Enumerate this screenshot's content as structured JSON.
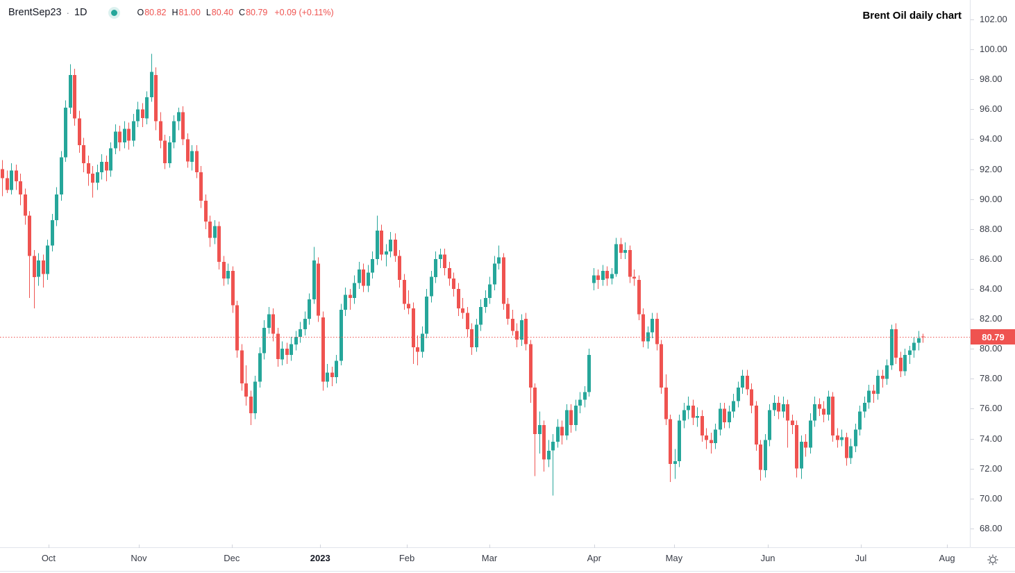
{
  "header": {
    "symbol": "BrentSep23",
    "separator": "·",
    "interval": "1D",
    "ohlc": [
      {
        "label": "O",
        "value": "80.82"
      },
      {
        "label": "H",
        "value": "81.00"
      },
      {
        "label": "L",
        "value": "80.40"
      },
      {
        "label": "C",
        "value": "80.79"
      }
    ],
    "change": "+0.09 (+0.11%)"
  },
  "annotation": {
    "title": "Brent Oil daily chart"
  },
  "price_badge": {
    "value": "80.79"
  },
  "icons": {
    "status_dot": "teal-dot",
    "settings": "sun-gear-icon"
  },
  "colors": {
    "up": "#26a69a",
    "down": "#ef5350",
    "accent_red": "#ef5350",
    "badge_bg": "#ef5350",
    "text": "#131722",
    "axis_text": "#363a45",
    "grid": "#e0e3eb"
  },
  "chart_data": {
    "type": "candlestick",
    "title": "Brent Oil daily chart",
    "symbol": "BrentSep23",
    "interval": "1D",
    "last_price": 80.79,
    "price_line": 80.79,
    "ylim": [
      66.74,
      103.3
    ],
    "y_ticks": [
      102,
      100,
      98,
      96,
      94,
      92,
      90,
      88,
      86,
      84,
      82,
      80,
      78,
      76,
      74,
      72,
      70,
      68
    ],
    "x_ticks": [
      {
        "label": "Oct",
        "index": 10.3,
        "bold": false
      },
      {
        "label": "Nov",
        "index": 30.3,
        "bold": false
      },
      {
        "label": "Dec",
        "index": 50.9,
        "bold": false
      },
      {
        "label": "2023",
        "index": 70.5,
        "bold": true
      },
      {
        "label": "Feb",
        "index": 89.7,
        "bold": false
      },
      {
        "label": "Mar",
        "index": 108.0,
        "bold": false
      },
      {
        "label": "Apr",
        "index": 131.2,
        "bold": false
      },
      {
        "label": "May",
        "index": 148.9,
        "bold": false
      },
      {
        "label": "Jun",
        "index": 169.7,
        "bold": false
      },
      {
        "label": "Jul",
        "index": 190.3,
        "bold": false
      },
      {
        "label": "Aug",
        "index": 209.4,
        "bold": false
      }
    ],
    "layout": {
      "x0": 3,
      "pitch": 6.5,
      "body_width": 5,
      "grid": false,
      "price_line_style": "dotted"
    },
    "candles": [
      [
        92.0,
        92.6,
        90.2,
        91.4
      ],
      [
        91.4,
        91.9,
        90.4,
        90.6
      ],
      [
        90.6,
        92.4,
        90.3,
        91.9
      ],
      [
        91.9,
        92.3,
        90.6,
        91.2
      ],
      [
        91.2,
        91.7,
        89.6,
        90.3
      ],
      [
        90.3,
        90.7,
        88.3,
        88.9
      ],
      [
        88.9,
        89.2,
        83.4,
        86.2
      ],
      [
        86.2,
        86.6,
        82.7,
        84.8
      ],
      [
        84.8,
        86.4,
        84.2,
        85.9
      ],
      [
        85.9,
        86.3,
        84.1,
        85.0
      ],
      [
        85.0,
        87.3,
        84.6,
        86.9
      ],
      [
        86.9,
        89.0,
        86.5,
        88.6
      ],
      [
        88.6,
        90.8,
        88.2,
        90.3
      ],
      [
        90.3,
        93.2,
        89.9,
        92.8
      ],
      [
        92.8,
        96.6,
        92.5,
        96.1
      ],
      [
        96.1,
        99.0,
        95.7,
        98.3
      ],
      [
        98.3,
        98.7,
        94.9,
        95.4
      ],
      [
        95.4,
        95.9,
        93.1,
        93.6
      ],
      [
        93.6,
        94.1,
        91.8,
        92.4
      ],
      [
        92.4,
        92.9,
        90.9,
        91.7
      ],
      [
        91.7,
        92.2,
        90.1,
        91.1
      ],
      [
        91.1,
        92.3,
        90.6,
        91.8
      ],
      [
        91.8,
        93.0,
        91.3,
        92.5
      ],
      [
        92.5,
        92.9,
        91.2,
        91.9
      ],
      [
        91.9,
        93.8,
        91.5,
        93.4
      ],
      [
        93.4,
        95.0,
        93.0,
        94.5
      ],
      [
        94.5,
        94.9,
        93.2,
        93.8
      ],
      [
        93.8,
        95.2,
        93.4,
        94.7
      ],
      [
        94.7,
        95.1,
        93.3,
        93.9
      ],
      [
        93.9,
        95.7,
        93.5,
        95.2
      ],
      [
        95.2,
        96.5,
        94.8,
        96.0
      ],
      [
        96.0,
        96.4,
        94.8,
        95.4
      ],
      [
        95.4,
        97.2,
        95.0,
        96.8
      ],
      [
        96.8,
        99.7,
        96.5,
        98.5
      ],
      [
        98.3,
        98.8,
        94.6,
        95.2
      ],
      [
        95.2,
        95.8,
        93.4,
        93.9
      ],
      [
        93.9,
        94.3,
        92.0,
        92.4
      ],
      [
        92.4,
        94.2,
        92.1,
        93.8
      ],
      [
        93.8,
        95.6,
        93.4,
        95.2
      ],
      [
        95.2,
        96.1,
        94.6,
        95.8
      ],
      [
        95.8,
        96.2,
        93.6,
        94.0
      ],
      [
        94.0,
        94.4,
        92.1,
        92.5
      ],
      [
        92.5,
        93.6,
        91.9,
        93.2
      ],
      [
        93.2,
        93.6,
        91.4,
        91.8
      ],
      [
        91.8,
        92.2,
        89.4,
        89.9
      ],
      [
        89.9,
        90.3,
        88.0,
        88.5
      ],
      [
        88.5,
        88.9,
        86.8,
        87.4
      ],
      [
        87.4,
        88.6,
        87.0,
        88.2
      ],
      [
        88.2,
        88.5,
        85.3,
        85.8
      ],
      [
        85.8,
        86.2,
        84.2,
        84.7
      ],
      [
        84.7,
        85.7,
        84.3,
        85.2
      ],
      [
        85.2,
        85.5,
        82.4,
        82.9
      ],
      [
        82.9,
        83.2,
        79.4,
        79.9
      ],
      [
        79.9,
        80.3,
        77.2,
        77.7
      ],
      [
        77.7,
        78.9,
        76.2,
        76.8
      ],
      [
        76.8,
        77.2,
        74.9,
        75.7
      ],
      [
        75.7,
        78.2,
        75.3,
        77.8
      ],
      [
        77.8,
        80.1,
        77.4,
        79.7
      ],
      [
        79.7,
        81.9,
        79.3,
        81.4
      ],
      [
        81.4,
        82.8,
        81.0,
        82.3
      ],
      [
        82.3,
        82.7,
        80.5,
        81.0
      ],
      [
        81.0,
        81.4,
        78.8,
        79.3
      ],
      [
        79.3,
        80.5,
        78.9,
        80.0
      ],
      [
        80.0,
        80.4,
        79.0,
        79.6
      ],
      [
        79.6,
        80.8,
        79.2,
        80.3
      ],
      [
        80.3,
        81.2,
        79.9,
        80.8
      ],
      [
        80.8,
        81.8,
        80.4,
        81.3
      ],
      [
        81.3,
        82.5,
        80.9,
        82.0
      ],
      [
        82.0,
        83.7,
        81.6,
        83.3
      ],
      [
        83.3,
        86.8,
        83.0,
        85.9
      ],
      [
        85.7,
        86.1,
        81.8,
        82.2
      ],
      [
        82.1,
        82.5,
        77.2,
        77.8
      ],
      [
        77.8,
        79.0,
        77.4,
        78.4
      ],
      [
        78.4,
        78.8,
        77.5,
        78.1
      ],
      [
        78.1,
        79.6,
        77.7,
        79.2
      ],
      [
        79.2,
        83.0,
        78.9,
        82.6
      ],
      [
        82.6,
        84.1,
        82.2,
        83.6
      ],
      [
        83.6,
        84.0,
        82.6,
        83.4
      ],
      [
        83.4,
        84.9,
        83.0,
        84.4
      ],
      [
        84.4,
        85.8,
        84.0,
        85.3
      ],
      [
        85.3,
        85.7,
        83.8,
        84.2
      ],
      [
        84.2,
        85.6,
        83.8,
        85.1
      ],
      [
        85.1,
        86.5,
        84.7,
        86.0
      ],
      [
        86.0,
        88.9,
        85.6,
        87.9
      ],
      [
        87.9,
        88.3,
        85.9,
        86.3
      ],
      [
        86.3,
        87.0,
        85.5,
        86.5
      ],
      [
        86.5,
        87.8,
        86.1,
        87.3
      ],
      [
        87.3,
        87.7,
        85.8,
        86.2
      ],
      [
        86.2,
        86.6,
        84.1,
        84.6
      ],
      [
        84.6,
        85.0,
        82.6,
        83.0
      ],
      [
        83.0,
        83.9,
        82.3,
        82.7
      ],
      [
        82.7,
        83.1,
        79.0,
        80.1
      ],
      [
        80.1,
        80.9,
        78.9,
        79.8
      ],
      [
        79.8,
        81.5,
        79.4,
        81.0
      ],
      [
        81.0,
        84.0,
        80.7,
        83.5
      ],
      [
        83.5,
        85.2,
        83.1,
        84.8
      ],
      [
        84.8,
        86.5,
        84.4,
        86.0
      ],
      [
        86.0,
        86.7,
        85.4,
        86.3
      ],
      [
        86.3,
        86.7,
        84.9,
        85.4
      ],
      [
        85.4,
        85.8,
        84.2,
        84.7
      ],
      [
        84.7,
        85.1,
        83.5,
        84.0
      ],
      [
        84.0,
        84.4,
        82.2,
        82.7
      ],
      [
        82.7,
        83.4,
        82.0,
        82.4
      ],
      [
        82.4,
        82.8,
        80.8,
        81.3
      ],
      [
        81.3,
        81.7,
        79.6,
        80.1
      ],
      [
        80.1,
        82.0,
        79.8,
        81.6
      ],
      [
        81.6,
        83.3,
        81.2,
        82.8
      ],
      [
        82.8,
        83.9,
        82.4,
        83.4
      ],
      [
        83.4,
        84.8,
        83.0,
        84.3
      ],
      [
        84.3,
        86.2,
        83.9,
        85.7
      ],
      [
        85.7,
        86.9,
        85.3,
        86.1
      ],
      [
        86.1,
        86.4,
        82.6,
        83.0
      ],
      [
        83.0,
        83.4,
        81.6,
        82.0
      ],
      [
        82.0,
        82.6,
        80.9,
        81.2
      ],
      [
        81.2,
        81.7,
        80.1,
        80.6
      ],
      [
        80.6,
        82.3,
        80.2,
        81.9
      ],
      [
        82.0,
        82.4,
        79.9,
        80.3
      ],
      [
        80.3,
        80.6,
        76.4,
        77.4
      ],
      [
        77.4,
        77.7,
        71.5,
        74.3
      ],
      [
        74.3,
        75.8,
        73.0,
        74.9
      ],
      [
        74.9,
        75.2,
        71.8,
        72.6
      ],
      [
        72.6,
        73.9,
        72.1,
        73.2
      ],
      [
        73.2,
        74.3,
        70.2,
        73.8
      ],
      [
        73.8,
        75.3,
        73.4,
        74.8
      ],
      [
        74.8,
        75.2,
        73.6,
        74.2
      ],
      [
        74.2,
        76.3,
        73.9,
        75.9
      ],
      [
        75.9,
        76.3,
        74.4,
        74.9
      ],
      [
        74.9,
        76.6,
        74.5,
        76.2
      ],
      [
        76.2,
        77.1,
        75.7,
        76.6
      ],
      [
        76.6,
        77.5,
        76.1,
        77.1
      ],
      [
        77.1,
        80.0,
        76.8,
        79.6
      ],
      [
        84.4,
        85.4,
        83.9,
        84.9
      ],
      [
        84.9,
        85.3,
        84.0,
        84.6
      ],
      [
        84.6,
        85.6,
        84.2,
        85.2
      ],
      [
        85.2,
        85.5,
        84.2,
        84.7
      ],
      [
        84.7,
        85.4,
        84.3,
        85.0
      ],
      [
        85.0,
        87.4,
        84.8,
        87.0
      ],
      [
        87.0,
        87.4,
        86.0,
        86.4
      ],
      [
        86.4,
        87.1,
        86.0,
        86.6
      ],
      [
        86.6,
        86.9,
        84.4,
        84.8
      ],
      [
        84.8,
        85.3,
        84.2,
        84.7
      ],
      [
        84.6,
        84.9,
        81.9,
        82.3
      ],
      [
        82.3,
        82.7,
        80.1,
        80.5
      ],
      [
        80.5,
        81.5,
        80.0,
        81.1
      ],
      [
        81.1,
        82.4,
        80.7,
        82.0
      ],
      [
        82.0,
        82.4,
        79.9,
        80.3
      ],
      [
        80.3,
        80.6,
        77.0,
        77.4
      ],
      [
        77.4,
        78.3,
        74.9,
        75.3
      ],
      [
        75.3,
        75.6,
        71.1,
        72.3
      ],
      [
        72.3,
        73.3,
        71.3,
        72.5
      ],
      [
        72.5,
        75.6,
        72.1,
        75.2
      ],
      [
        75.2,
        76.4,
        74.7,
        75.9
      ],
      [
        75.9,
        76.8,
        75.3,
        76.2
      ],
      [
        76.2,
        76.6,
        74.9,
        75.4
      ],
      [
        75.4,
        76.1,
        74.8,
        75.5
      ],
      [
        75.5,
        75.9,
        73.8,
        74.2
      ],
      [
        74.2,
        74.7,
        73.3,
        73.9
      ],
      [
        73.9,
        74.4,
        73.0,
        73.7
      ],
      [
        73.7,
        75.0,
        73.3,
        74.6
      ],
      [
        74.6,
        76.4,
        74.2,
        76.0
      ],
      [
        76.0,
        76.4,
        74.7,
        75.1
      ],
      [
        75.1,
        76.2,
        74.7,
        75.8
      ],
      [
        75.8,
        77.0,
        75.4,
        76.5
      ],
      [
        76.5,
        77.8,
        76.1,
        77.4
      ],
      [
        77.4,
        78.6,
        77.0,
        78.2
      ],
      [
        78.2,
        78.6,
        76.9,
        77.3
      ],
      [
        77.3,
        77.7,
        75.7,
        76.2
      ],
      [
        76.2,
        76.5,
        73.2,
        73.6
      ],
      [
        73.6,
        73.9,
        71.2,
        71.9
      ],
      [
        71.9,
        74.3,
        71.4,
        73.9
      ],
      [
        73.9,
        76.3,
        73.5,
        75.9
      ],
      [
        75.9,
        76.9,
        75.5,
        76.4
      ],
      [
        76.4,
        76.8,
        75.3,
        75.8
      ],
      [
        75.8,
        76.8,
        75.4,
        76.3
      ],
      [
        76.3,
        76.6,
        73.4,
        75.2
      ],
      [
        75.2,
        75.6,
        74.3,
        74.9
      ],
      [
        74.9,
        75.2,
        71.4,
        72.0
      ],
      [
        72.0,
        74.2,
        71.3,
        73.8
      ],
      [
        73.8,
        74.3,
        72.8,
        73.4
      ],
      [
        73.4,
        75.7,
        73.0,
        75.2
      ],
      [
        75.2,
        76.8,
        74.8,
        76.3
      ],
      [
        76.3,
        76.7,
        75.5,
        76.0
      ],
      [
        76.0,
        76.5,
        75.1,
        75.6
      ],
      [
        75.6,
        77.2,
        75.2,
        76.8
      ],
      [
        76.8,
        77.1,
        73.8,
        74.2
      ],
      [
        74.2,
        74.7,
        73.4,
        73.9
      ],
      [
        73.9,
        74.6,
        73.5,
        74.1
      ],
      [
        74.1,
        74.4,
        72.2,
        72.7
      ],
      [
        72.7,
        74.0,
        72.3,
        73.5
      ],
      [
        73.5,
        75.0,
        73.1,
        74.6
      ],
      [
        74.6,
        76.2,
        74.2,
        75.8
      ],
      [
        75.8,
        76.8,
        75.4,
        76.4
      ],
      [
        76.4,
        77.6,
        76.0,
        77.2
      ],
      [
        77.2,
        77.6,
        76.4,
        77.0
      ],
      [
        77.0,
        78.6,
        76.6,
        78.2
      ],
      [
        78.2,
        78.6,
        77.4,
        78.0
      ],
      [
        78.0,
        79.3,
        77.6,
        78.9
      ],
      [
        78.9,
        81.6,
        78.6,
        81.3
      ],
      [
        81.3,
        81.7,
        79.0,
        79.4
      ],
      [
        79.4,
        79.8,
        78.1,
        78.5
      ],
      [
        78.5,
        80.0,
        78.2,
        79.6
      ],
      [
        79.6,
        80.2,
        79.0,
        79.9
      ],
      [
        79.9,
        80.8,
        79.4,
        80.4
      ],
      [
        80.4,
        81.2,
        79.9,
        80.7
      ],
      [
        80.82,
        81.0,
        80.4,
        80.79
      ]
    ]
  }
}
